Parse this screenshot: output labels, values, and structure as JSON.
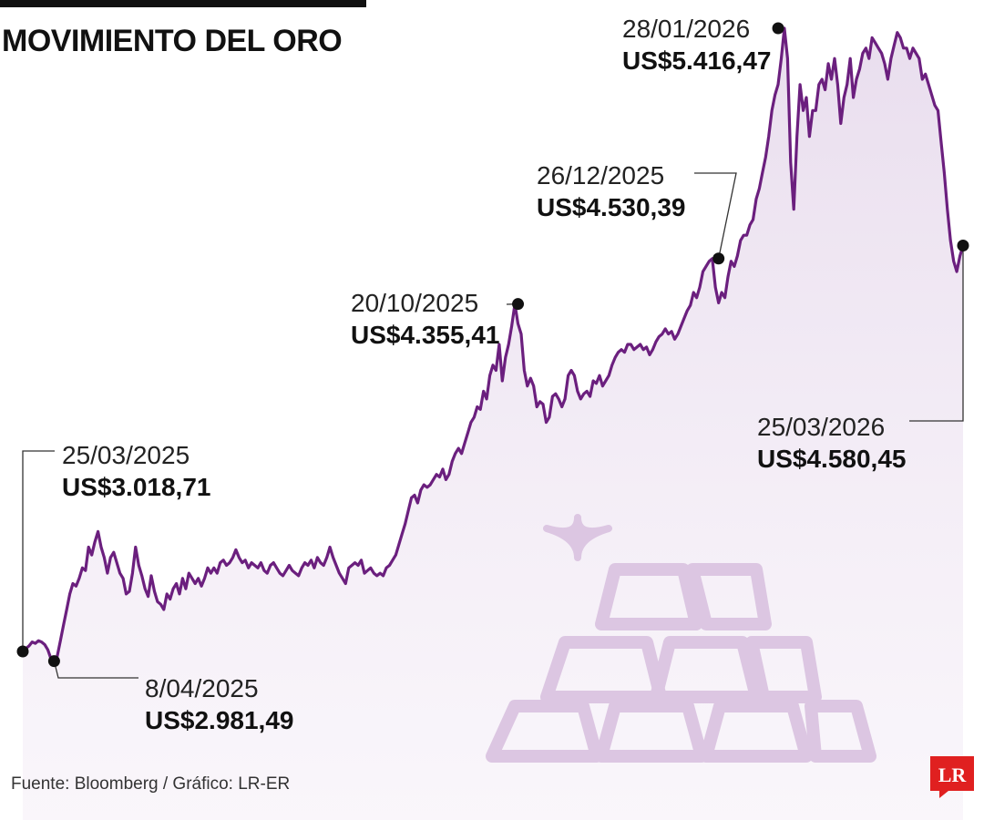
{
  "title": "MOVIMIENTO DEL ORO",
  "source": "Fuente: Bloomberg / Gráfico: LR-ER",
  "logo_text": "LR",
  "colors": {
    "line": "#6b1f7e",
    "area": "#ece1f1",
    "illustration": "#dcc6e2",
    "logo": "#e02020",
    "marker": "#111111"
  },
  "chart_data": {
    "type": "line",
    "title": "MOVIMIENTO DEL ORO",
    "xlabel": "",
    "ylabel": "",
    "unit": "US$",
    "ylim": [
      2800,
      5500
    ],
    "grid": false,
    "legend": "none",
    "x_start": "25/03/2025",
    "x_end": "25/03/2026",
    "values": [
      3018.71,
      3030,
      3040,
      3055,
      3050,
      3060,
      3055,
      3045,
      3025,
      2990,
      2981.49,
      3000,
      3060,
      3120,
      3180,
      3240,
      3280,
      3270,
      3300,
      3340,
      3330,
      3420,
      3390,
      3440,
      3480,
      3420,
      3380,
      3320,
      3380,
      3400,
      3360,
      3320,
      3300,
      3240,
      3250,
      3320,
      3420,
      3350,
      3310,
      3260,
      3230,
      3310,
      3250,
      3210,
      3200,
      3180,
      3240,
      3220,
      3260,
      3280,
      3240,
      3300,
      3260,
      3320,
      3300,
      3280,
      3300,
      3270,
      3300,
      3340,
      3320,
      3340,
      3320,
      3360,
      3370,
      3350,
      3360,
      3380,
      3410,
      3380,
      3360,
      3370,
      3340,
      3360,
      3350,
      3340,
      3360,
      3330,
      3320,
      3350,
      3360,
      3340,
      3320,
      3310,
      3330,
      3350,
      3330,
      3320,
      3310,
      3340,
      3360,
      3350,
      3370,
      3340,
      3380,
      3360,
      3350,
      3380,
      3420,
      3380,
      3350,
      3320,
      3300,
      3280,
      3340,
      3350,
      3360,
      3350,
      3370,
      3320,
      3330,
      3340,
      3320,
      3310,
      3320,
      3310,
      3340,
      3350,
      3370,
      3390,
      3430,
      3470,
      3510,
      3560,
      3610,
      3620,
      3590,
      3640,
      3660,
      3650,
      3660,
      3680,
      3700,
      3690,
      3720,
      3680,
      3700,
      3750,
      3780,
      3800,
      3780,
      3820,
      3860,
      3900,
      3920,
      3960,
      3950,
      4020,
      3990,
      4080,
      4120,
      4100,
      4200,
      4060,
      4150,
      4200,
      4270,
      4355.41,
      4280,
      4240,
      4100,
      4040,
      4070,
      4040,
      3960,
      3980,
      3970,
      3900,
      3920,
      4000,
      4010,
      3990,
      3960,
      3990,
      4080,
      4100,
      4080,
      4020,
      3990,
      4010,
      4020,
      4000,
      4060,
      4050,
      4080,
      4040,
      4060,
      4080,
      4120,
      4150,
      4170,
      4180,
      4170,
      4200,
      4200,
      4180,
      4190,
      4200,
      4180,
      4190,
      4160,
      4180,
      4210,
      4230,
      4240,
      4260,
      4240,
      4250,
      4220,
      4240,
      4270,
      4300,
      4330,
      4350,
      4400,
      4380,
      4420,
      4480,
      4500,
      4520,
      4530.39,
      4420,
      4360,
      4400,
      4380,
      4460,
      4520,
      4500,
      4540,
      4600,
      4620,
      4620,
      4660,
      4680,
      4760,
      4800,
      4860,
      4920,
      5000,
      5100,
      5160,
      5200,
      5300,
      5416.47,
      5300,
      4900,
      4720,
      5000,
      5200,
      5100,
      5150,
      5000,
      5100,
      5100,
      5200,
      5220,
      5180,
      5280,
      5220,
      5300,
      5200,
      5050,
      5150,
      5200,
      5300,
      5150,
      5220,
      5260,
      5320,
      5340,
      5300,
      5380,
      5360,
      5340,
      5320,
      5280,
      5220,
      5300,
      5350,
      5400,
      5380,
      5340,
      5340,
      5300,
      5340,
      5320,
      5300,
      5220,
      5240,
      5200,
      5160,
      5120,
      5100,
      4980,
      4860,
      4720,
      4600,
      4520,
      4480,
      4540,
      4580.45
    ],
    "annotations": [
      {
        "date": "25/03/2025",
        "value_label": "US$3.018,71",
        "value": 3018.71
      },
      {
        "date": "8/04/2025",
        "value_label": "US$2.981,49",
        "value": 2981.49
      },
      {
        "date": "20/10/2025",
        "value_label": "US$4.355,41",
        "value": 4355.41
      },
      {
        "date": "26/12/2025",
        "value_label": "US$4.530,39",
        "value": 4530.39
      },
      {
        "date": "28/01/2026",
        "value_label": "US$5.416,47",
        "value": 5416.47
      },
      {
        "date": "25/03/2026",
        "value_label": "US$4.580,45",
        "value": 4580.45
      }
    ]
  }
}
